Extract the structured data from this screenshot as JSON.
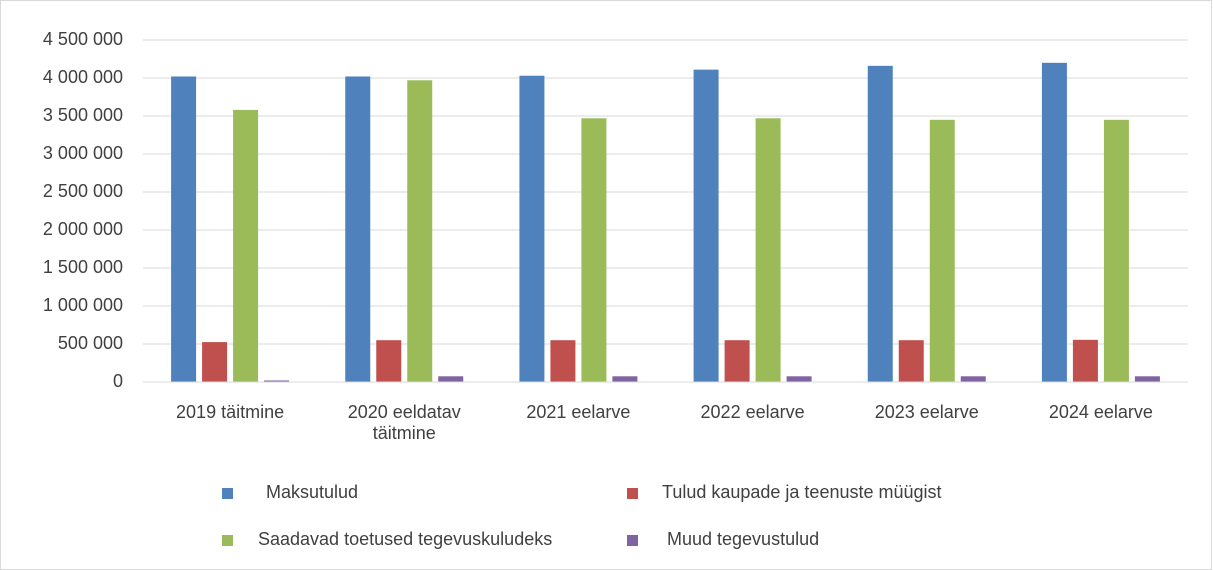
{
  "chart_data": {
    "type": "bar",
    "categories": [
      "2019 täitmine",
      "2020 eeldatav täitmine",
      "2021 eelarve",
      "2022 eelarve",
      "2023 eelarve",
      "2024 eelarve"
    ],
    "series": [
      {
        "name": "Maksutulud",
        "color": "#4f81bd",
        "values": [
          4020000,
          4020000,
          4030000,
          4110000,
          4160000,
          4200000
        ]
      },
      {
        "name": "Tulud kaupade ja teenuste müügist",
        "color": "#c0504d",
        "values": [
          525000,
          550000,
          550000,
          550000,
          550000,
          555000
        ]
      },
      {
        "name": "Saadavad toetused tegevuskuludeks",
        "color": "#9bbb59",
        "values": [
          3580000,
          3970000,
          3470000,
          3470000,
          3450000,
          3450000
        ]
      },
      {
        "name": "Muud tegevustulud",
        "color": "#8064a2",
        "values": [
          20000,
          75000,
          75000,
          75000,
          75000,
          75000
        ]
      }
    ],
    "ylim": [
      0,
      4500000
    ],
    "yticks": [
      0,
      {
        "value": 500000,
        "label": "500 000"
      },
      {
        "value": 1000000,
        "label": "1 000 000"
      },
      {
        "value": 1500000,
        "label": "1 500 000"
      },
      {
        "value": 2000000,
        "label": "2 000 000"
      },
      {
        "value": 2500000,
        "label": "2 500 000"
      },
      {
        "value": 3000000,
        "label": "3 000 000"
      },
      {
        "value": 3500000,
        "label": "3 500 000"
      },
      {
        "value": 4000000,
        "label": "4 000 000"
      },
      {
        "value": 4500000,
        "label": "4 500 000"
      }
    ],
    "grid": true,
    "legend": "bottom"
  }
}
